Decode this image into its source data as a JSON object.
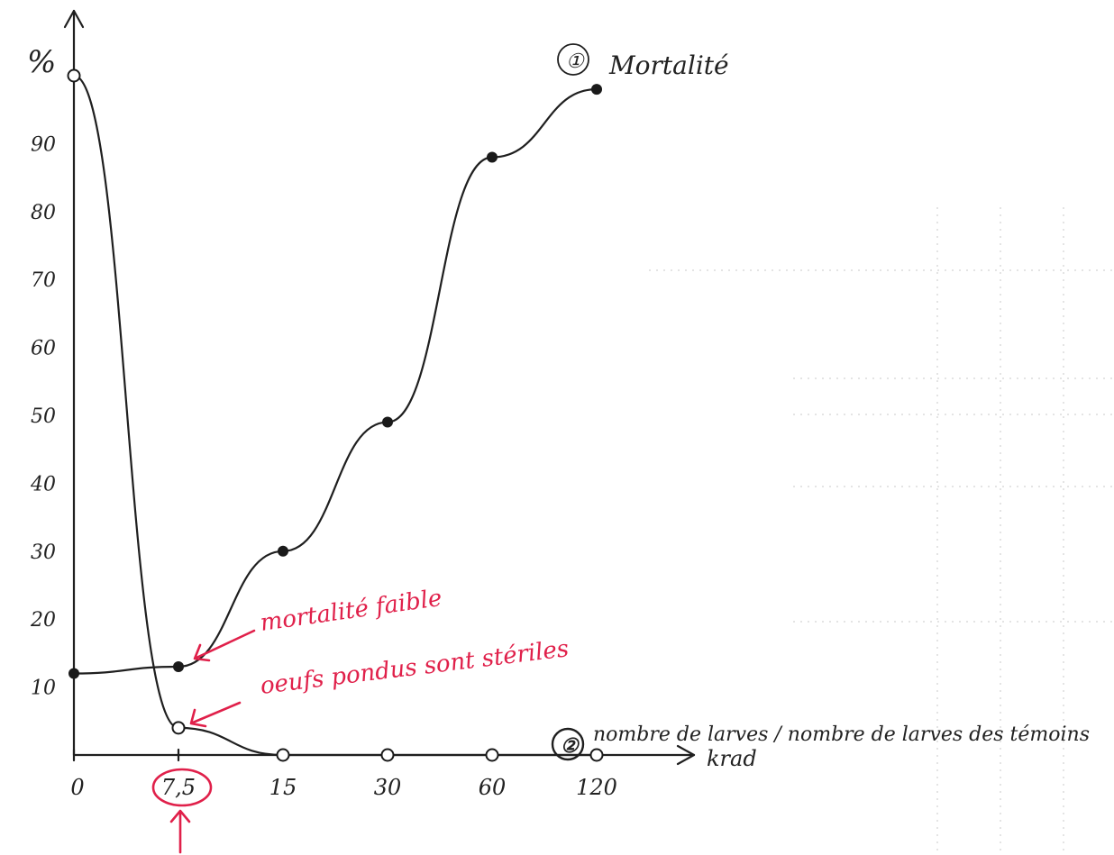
{
  "chart_data": {
    "type": "line",
    "ylabel": "%",
    "xlabel": "krad",
    "categories": [
      "0",
      "7,5",
      "15",
      "30",
      "60",
      "120"
    ],
    "x_tick_labels": [
      "0",
      "7,5",
      "15",
      "30",
      "60",
      "120"
    ],
    "y_tick_labels": [
      "10",
      "20",
      "30",
      "40",
      "50",
      "60",
      "70",
      "80",
      "90"
    ],
    "ylim": [
      0,
      100
    ],
    "grid": false,
    "series": [
      {
        "name": "Mortalité",
        "marker": "①",
        "values": [
          12,
          13,
          30,
          49,
          88,
          98
        ],
        "marker_style": "filled"
      },
      {
        "name": "nombre de larves / nombre de larves des témoins",
        "marker": "②",
        "values": [
          100,
          4,
          0,
          0,
          0,
          0
        ],
        "marker_style": "open"
      }
    ],
    "annotations": [
      {
        "text": "mortalité faible",
        "target_series": 0,
        "target_category": "7,5",
        "color": "#e0204a"
      },
      {
        "text": "oeufs pondus sont stériles",
        "target_series": 1,
        "target_category": "7,5",
        "color": "#e0204a"
      }
    ],
    "highlighted_category": "7,5",
    "colors": {
      "ink": "#1f1f1f",
      "annotation": "#e0204a"
    }
  }
}
